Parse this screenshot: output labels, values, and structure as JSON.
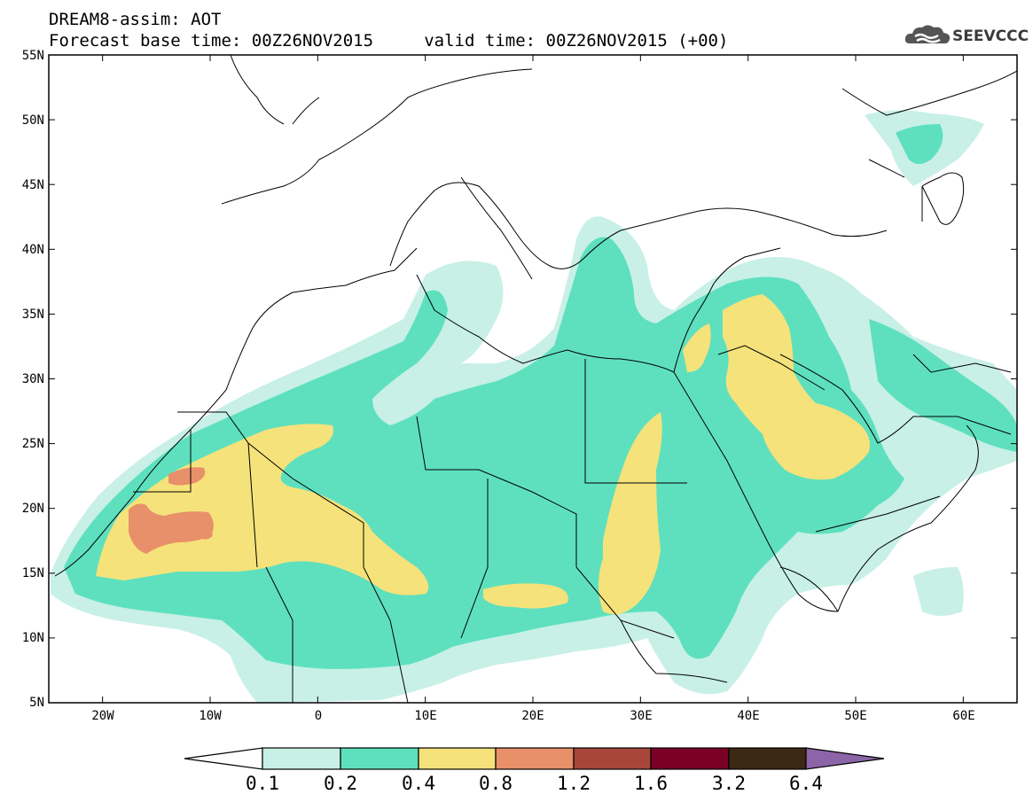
{
  "header": {
    "title_line1": "DREAM8-assim: AOT",
    "title_line2": "Forecast base time: 00Z26NOV2015     valid time: 00Z26NOV2015 (+00)",
    "logo_text": "SEEVCCC"
  },
  "map": {
    "lat_range": [
      5,
      55
    ],
    "lon_range": [
      -25,
      65
    ],
    "lat_labels": [
      "55N",
      "50N",
      "45N",
      "40N",
      "35N",
      "30N",
      "25N",
      "20N",
      "15N",
      "10N",
      "5N"
    ],
    "lon_labels": [
      "20W",
      "10W",
      "0",
      "10E",
      "20E",
      "30E",
      "40E",
      "50E",
      "60E"
    ],
    "field": "Aerosol Optical Thickness"
  },
  "legend": {
    "levels": [
      "0.1",
      "0.2",
      "0.4",
      "0.8",
      "1.2",
      "1.6",
      "3.2",
      "6.4"
    ],
    "colors": [
      "#c8f0e6",
      "#5ee0be",
      "#f5e27a",
      "#e8906a",
      "#a8463c",
      "#7a0028",
      "#3c2814",
      "#8c64a8"
    ]
  }
}
